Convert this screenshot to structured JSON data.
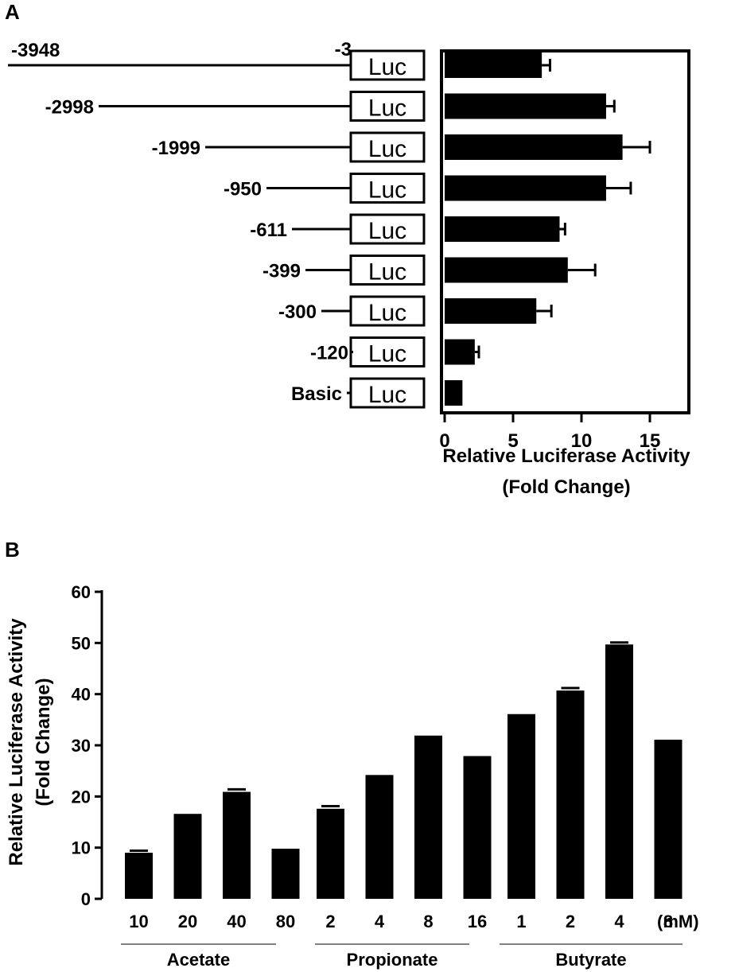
{
  "panel_a": {
    "letter": "A",
    "chart_data": {
      "type": "bar",
      "orientation": "horizontal",
      "construct_label": "Luc",
      "top_end_label": "-3",
      "categories": [
        "-3948",
        "-2998",
        "-1999",
        "-950",
        "-611",
        "-399",
        "-300",
        "-120",
        "Basic"
      ],
      "values": [
        7.1,
        11.8,
        13.0,
        11.8,
        8.4,
        9.0,
        6.7,
        2.2,
        1.3
      ],
      "errors": [
        0.6,
        0.6,
        2.0,
        1.8,
        0.4,
        2.0,
        1.1,
        0.3,
        0.0
      ],
      "xlim": [
        0,
        18
      ],
      "xticks": [
        0,
        5,
        10,
        15
      ],
      "xlabel": "Relative Luciferase Activity",
      "xlabel2": "(Fold Change)",
      "bar_color": "#000000"
    }
  },
  "panel_b": {
    "letter": "B",
    "chart_data": {
      "type": "bar",
      "groups": [
        {
          "name": "Acetate",
          "categories": [
            "10",
            "20",
            "40",
            "80"
          ],
          "values": [
            9.0,
            16.6,
            20.9,
            9.8
          ],
          "errors": [
            0.4,
            0,
            0.5,
            0
          ]
        },
        {
          "name": "Propionate",
          "categories": [
            "2",
            "4",
            "8",
            "16"
          ],
          "values": [
            17.6,
            24.2,
            31.9,
            27.9
          ],
          "errors": [
            0.5,
            0,
            0,
            0
          ]
        },
        {
          "name": "Butyrate",
          "categories": [
            "1",
            "2",
            "4",
            "8"
          ],
          "values": [
            36.1,
            40.7,
            49.7,
            31.1
          ],
          "errors": [
            0,
            0.5,
            0.4,
            0
          ]
        }
      ],
      "unit_label": "(mM)",
      "ylim": [
        0,
        60
      ],
      "yticks": [
        0,
        10,
        20,
        30,
        40,
        50,
        60
      ],
      "ylabel": "Relative Luciferase Activity",
      "ylabel2": "(Fold Change)",
      "bar_color": "#000000"
    }
  }
}
